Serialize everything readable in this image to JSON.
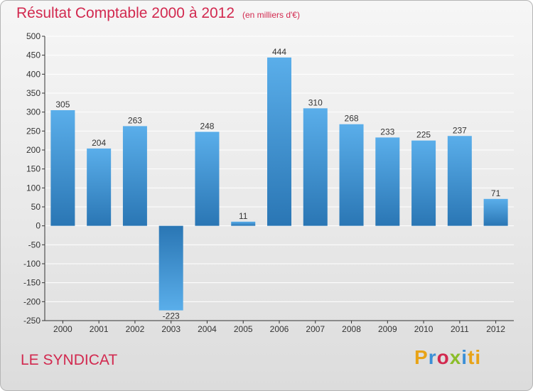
{
  "chart_data": {
    "type": "bar",
    "title": "Résultat Comptable 2000 à 2012",
    "subtitle": "(en milliers d'€)",
    "categories": [
      "2000",
      "2001",
      "2002",
      "2003",
      "2004",
      "2005",
      "2006",
      "2007",
      "2008",
      "2009",
      "2010",
      "2011",
      "2012"
    ],
    "values": [
      305,
      204,
      263,
      -223,
      248,
      11,
      444,
      310,
      268,
      233,
      225,
      237,
      71
    ],
    "value_labels": [
      "305",
      "204",
      "263",
      "-223",
      "248",
      "11",
      "444",
      "310",
      "268",
      "233",
      "225",
      "237",
      "71"
    ],
    "ylim": [
      -250,
      500
    ],
    "yticks": [
      500,
      450,
      400,
      350,
      300,
      250,
      200,
      150,
      100,
      50,
      0,
      -50,
      -100,
      -150,
      -200,
      -250
    ],
    "ytick_labels": [
      "500",
      "450",
      "400",
      "350",
      "300",
      "250",
      "200",
      "150",
      "100",
      "50",
      "0",
      "-50",
      "-100",
      "-150",
      "-200",
      "-250"
    ],
    "grid": true,
    "xlabel": "",
    "ylabel": ""
  },
  "commune": "LE SYNDICAT",
  "logo": {
    "letters": [
      "P",
      "r",
      "o",
      "x",
      "i",
      "ti"
    ]
  },
  "colors": {
    "title": "#d2294f",
    "bar_light": "#5aaeea",
    "bar_dark": "#2a76b4",
    "grid": "#ffffff",
    "axis": "#333333"
  }
}
